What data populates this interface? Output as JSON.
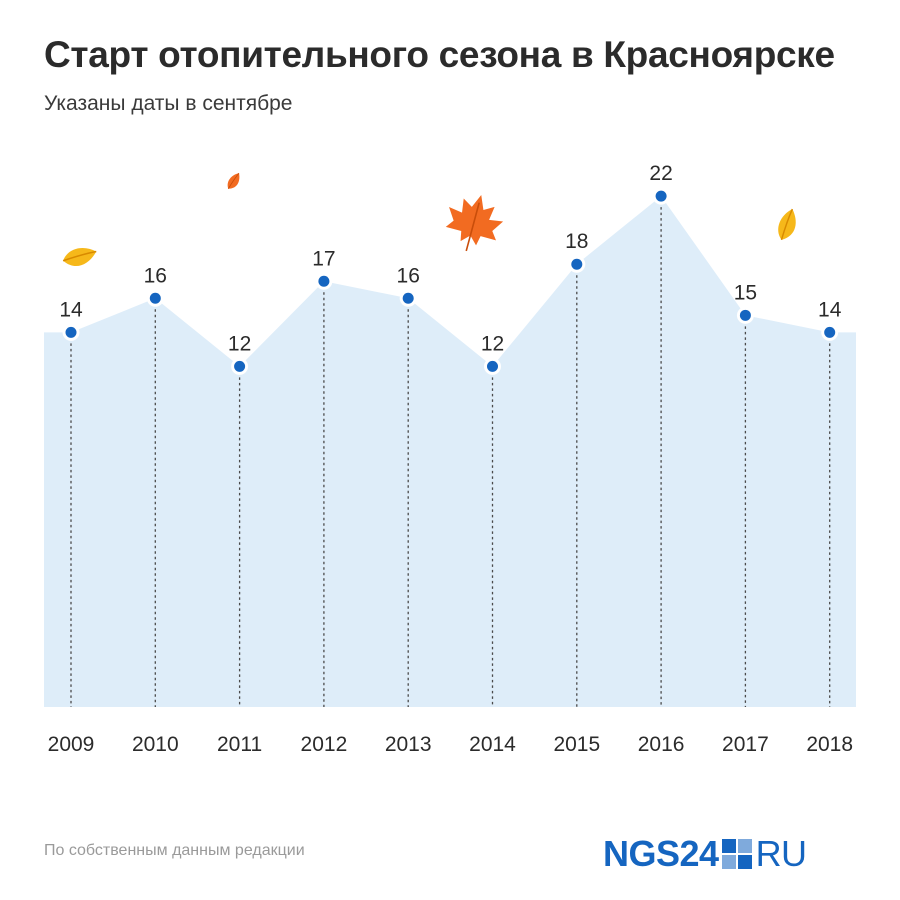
{
  "header": {
    "title": "Старт отопительного сезона в Красноярске",
    "subtitle": "Указаны даты в сентябре"
  },
  "footer": {
    "source": "По собственным данным редакции",
    "logo_left": "NGS24",
    "logo_right": "RU"
  },
  "colors": {
    "area_fill": "#deedf9",
    "point": "#1565c0",
    "text": "#2b2b2b",
    "logo": "#1565c0"
  },
  "chart_data": {
    "type": "area",
    "categories": [
      "2009",
      "2010",
      "2011",
      "2012",
      "2013",
      "2014",
      "2015",
      "2016",
      "2017",
      "2018"
    ],
    "values": [
      14,
      16,
      12,
      17,
      16,
      12,
      18,
      22,
      15,
      14
    ],
    "data_labels": [
      "14",
      "16",
      "12",
      "17",
      "16",
      "12",
      "18",
      "22",
      "15",
      "14"
    ],
    "title": "Старт отопительного сезона в Красноярске",
    "subtitle": "Указаны даты в сентябре",
    "xlabel": "",
    "ylabel": "",
    "ylim": [
      -8,
      26
    ],
    "grid": false,
    "legend": "none"
  }
}
